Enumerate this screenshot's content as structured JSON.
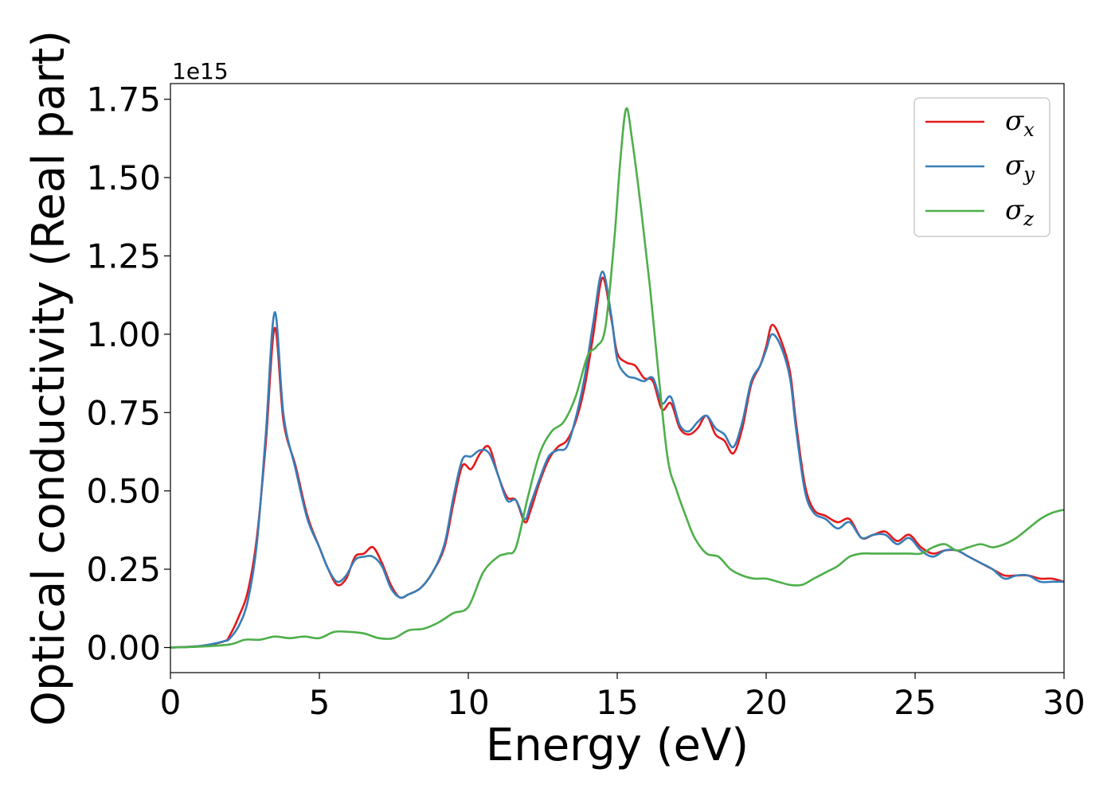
{
  "chart_data": {
    "type": "line",
    "xlabel": "Energy (eV)",
    "ylabel": "Optical conductivity (Real part)",
    "y_offset_label": "1e15",
    "xlim": [
      0,
      30
    ],
    "ylim": [
      -0.08,
      1.8
    ],
    "x_ticks": [
      0,
      5,
      10,
      15,
      20,
      25,
      30
    ],
    "x_tick_labels": [
      "0",
      "5",
      "10",
      "15",
      "20",
      "25",
      "30"
    ],
    "y_ticks": [
      0.0,
      0.25,
      0.5,
      0.75,
      1.0,
      1.25,
      1.5,
      1.75
    ],
    "y_tick_labels": [
      "0.00",
      "0.25",
      "0.50",
      "0.75",
      "1.00",
      "1.25",
      "1.50",
      "1.75"
    ],
    "grid": false,
    "legend_position": "top-right",
    "series": [
      {
        "name": "σx",
        "legend_symbol": "σ",
        "legend_subscript": "x",
        "color": "#e41a1c",
        "x": [
          0,
          1.0,
          1.8,
          2.0,
          2.3,
          2.6,
          2.9,
          3.2,
          3.5,
          3.8,
          4.2,
          4.6,
          5.0,
          5.3,
          5.6,
          5.9,
          6.2,
          6.5,
          6.8,
          7.1,
          7.4,
          7.7,
          8.0,
          8.4,
          8.8,
          9.2,
          9.5,
          9.8,
          10.1,
          10.4,
          10.7,
          11.0,
          11.3,
          11.6,
          11.9,
          12.1,
          12.4,
          12.7,
          13.0,
          13.3,
          13.6,
          13.9,
          14.2,
          14.5,
          14.8,
          15.0,
          15.3,
          15.6,
          15.9,
          16.2,
          16.5,
          16.8,
          17.1,
          17.4,
          17.7,
          18.0,
          18.3,
          18.6,
          18.9,
          19.2,
          19.5,
          19.8,
          20.0,
          20.2,
          20.5,
          20.8,
          21.0,
          21.3,
          21.6,
          22.0,
          22.4,
          22.8,
          23.2,
          23.6,
          24.0,
          24.4,
          24.8,
          25.2,
          25.6,
          26.0,
          26.4,
          26.8,
          27.2,
          27.6,
          28.0,
          28.4,
          28.8,
          29.2,
          29.6,
          30.0
        ],
        "y": [
          0.0,
          0.005,
          0.02,
          0.04,
          0.1,
          0.18,
          0.35,
          0.65,
          1.02,
          0.72,
          0.58,
          0.42,
          0.32,
          0.25,
          0.2,
          0.22,
          0.29,
          0.3,
          0.32,
          0.27,
          0.2,
          0.16,
          0.17,
          0.19,
          0.24,
          0.32,
          0.46,
          0.58,
          0.57,
          0.62,
          0.64,
          0.55,
          0.48,
          0.47,
          0.4,
          0.44,
          0.53,
          0.6,
          0.64,
          0.66,
          0.72,
          0.83,
          1.0,
          1.18,
          1.05,
          0.94,
          0.91,
          0.9,
          0.86,
          0.85,
          0.76,
          0.78,
          0.7,
          0.68,
          0.7,
          0.74,
          0.68,
          0.66,
          0.62,
          0.7,
          0.84,
          0.9,
          0.96,
          1.03,
          0.98,
          0.88,
          0.72,
          0.52,
          0.44,
          0.42,
          0.4,
          0.41,
          0.35,
          0.36,
          0.37,
          0.34,
          0.36,
          0.32,
          0.3,
          0.31,
          0.31,
          0.29,
          0.27,
          0.25,
          0.23,
          0.23,
          0.23,
          0.22,
          0.22,
          0.21
        ]
      },
      {
        "name": "σy",
        "legend_symbol": "σ",
        "legend_subscript": "y",
        "color": "#377eb8",
        "x": [
          0,
          1.0,
          1.8,
          2.0,
          2.3,
          2.6,
          2.9,
          3.2,
          3.5,
          3.8,
          4.2,
          4.6,
          5.0,
          5.3,
          5.6,
          5.9,
          6.2,
          6.5,
          6.8,
          7.1,
          7.4,
          7.7,
          8.0,
          8.4,
          8.8,
          9.2,
          9.5,
          9.8,
          10.1,
          10.4,
          10.7,
          11.0,
          11.3,
          11.6,
          11.9,
          12.1,
          12.4,
          12.7,
          13.0,
          13.3,
          13.6,
          13.9,
          14.2,
          14.5,
          14.8,
          15.0,
          15.3,
          15.6,
          15.9,
          16.2,
          16.5,
          16.8,
          17.1,
          17.4,
          17.7,
          18.0,
          18.3,
          18.6,
          18.9,
          19.2,
          19.5,
          19.8,
          20.0,
          20.2,
          20.5,
          20.8,
          21.0,
          21.3,
          21.6,
          22.0,
          22.4,
          22.8,
          23.2,
          23.6,
          24.0,
          24.4,
          24.8,
          25.2,
          25.6,
          26.0,
          26.4,
          26.8,
          27.2,
          27.6,
          28.0,
          28.4,
          28.8,
          29.2,
          29.6,
          30.0
        ],
        "y": [
          0.0,
          0.005,
          0.02,
          0.03,
          0.07,
          0.15,
          0.33,
          0.68,
          1.07,
          0.74,
          0.57,
          0.41,
          0.32,
          0.25,
          0.21,
          0.23,
          0.28,
          0.29,
          0.29,
          0.26,
          0.19,
          0.16,
          0.17,
          0.19,
          0.24,
          0.33,
          0.48,
          0.6,
          0.61,
          0.63,
          0.62,
          0.55,
          0.47,
          0.47,
          0.41,
          0.46,
          0.54,
          0.61,
          0.63,
          0.64,
          0.73,
          0.86,
          1.04,
          1.2,
          1.06,
          0.92,
          0.87,
          0.86,
          0.85,
          0.86,
          0.78,
          0.8,
          0.71,
          0.69,
          0.72,
          0.74,
          0.7,
          0.68,
          0.64,
          0.72,
          0.85,
          0.9,
          0.95,
          1.0,
          0.96,
          0.86,
          0.7,
          0.5,
          0.43,
          0.41,
          0.38,
          0.4,
          0.35,
          0.36,
          0.36,
          0.33,
          0.35,
          0.31,
          0.29,
          0.31,
          0.31,
          0.29,
          0.27,
          0.25,
          0.22,
          0.23,
          0.23,
          0.21,
          0.21,
          0.21
        ]
      },
      {
        "name": "σz",
        "legend_symbol": "σ",
        "legend_subscript": "z",
        "color": "#4daf4a",
        "x": [
          0,
          1.0,
          2.0,
          2.5,
          3.0,
          3.5,
          4.0,
          4.5,
          5.0,
          5.5,
          6.0,
          6.5,
          7.0,
          7.5,
          8.0,
          8.5,
          9.0,
          9.5,
          10.0,
          10.5,
          11.0,
          11.3,
          11.6,
          12.0,
          12.4,
          12.8,
          13.2,
          13.6,
          14.0,
          14.3,
          14.6,
          14.9,
          15.1,
          15.3,
          15.5,
          15.8,
          16.1,
          16.4,
          16.7,
          17.0,
          17.3,
          17.6,
          18.0,
          18.4,
          18.8,
          19.2,
          19.6,
          20.0,
          20.4,
          20.8,
          21.2,
          21.6,
          22.0,
          22.4,
          22.8,
          23.2,
          23.6,
          24.0,
          24.4,
          24.8,
          25.2,
          25.6,
          26.0,
          26.4,
          26.8,
          27.2,
          27.6,
          28.0,
          28.4,
          28.8,
          29.2,
          29.6,
          30.0
        ],
        "y": [
          0.0,
          0.003,
          0.01,
          0.025,
          0.025,
          0.035,
          0.03,
          0.035,
          0.03,
          0.05,
          0.05,
          0.045,
          0.03,
          0.03,
          0.055,
          0.06,
          0.08,
          0.11,
          0.13,
          0.24,
          0.29,
          0.3,
          0.32,
          0.48,
          0.62,
          0.69,
          0.72,
          0.8,
          0.93,
          0.96,
          1.02,
          1.3,
          1.55,
          1.72,
          1.62,
          1.4,
          1.15,
          0.86,
          0.6,
          0.5,
          0.42,
          0.35,
          0.3,
          0.29,
          0.25,
          0.23,
          0.22,
          0.22,
          0.21,
          0.2,
          0.2,
          0.22,
          0.24,
          0.26,
          0.29,
          0.3,
          0.3,
          0.3,
          0.3,
          0.3,
          0.3,
          0.32,
          0.33,
          0.31,
          0.32,
          0.33,
          0.32,
          0.33,
          0.35,
          0.38,
          0.41,
          0.43,
          0.44
        ]
      }
    ]
  }
}
